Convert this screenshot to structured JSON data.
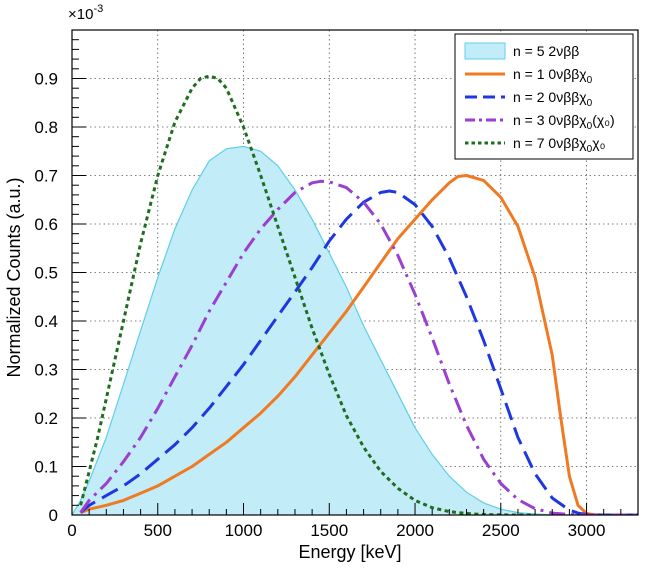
{
  "chart_data": {
    "type": "line",
    "title": "",
    "xlabel": "Energy [keV]",
    "ylabel": "Normalized Counts (a.u.)",
    "y_multiplier": "×10",
    "y_multiplier_exp": "-3",
    "xlim": [
      0,
      3300
    ],
    "ylim": [
      0,
      1.0
    ],
    "x_ticks": [
      0,
      500,
      1000,
      1500,
      2000,
      2500,
      3000
    ],
    "x_tick_labels": [
      "0",
      "500",
      "1000",
      "1500",
      "2000",
      "2500",
      "3000"
    ],
    "y_ticks": [
      0,
      0.1,
      0.2,
      0.3,
      0.4,
      0.5,
      0.6,
      0.7,
      0.8,
      0.9
    ],
    "y_tick_labels": [
      "0",
      "0.1",
      "0.2",
      "0.3",
      "0.4",
      "0.5",
      "0.6",
      "0.7",
      "0.8",
      "0.9"
    ],
    "grid": true,
    "legend_position": "top-right",
    "series": [
      {
        "name": "n = 5 2νββ",
        "legend_main": "n = 5 2νββ",
        "legend_sub": "",
        "legend_tail": "",
        "style": "filled-area",
        "color": "#5fcfe8",
        "fill": "#c2ecf7",
        "x": [
          0,
          50,
          100,
          200,
          300,
          400,
          500,
          600,
          700,
          800,
          900,
          1000,
          1100,
          1200,
          1300,
          1400,
          1500,
          1600,
          1700,
          1800,
          1900,
          2000,
          2100,
          2200,
          2300,
          2400,
          2500,
          2600,
          2700,
          2800,
          2900,
          3000
        ],
        "y": [
          0,
          0.03,
          0.07,
          0.16,
          0.27,
          0.38,
          0.49,
          0.59,
          0.67,
          0.73,
          0.755,
          0.76,
          0.75,
          0.72,
          0.67,
          0.61,
          0.54,
          0.47,
          0.39,
          0.32,
          0.25,
          0.18,
          0.125,
          0.08,
          0.047,
          0.025,
          0.012,
          0.005,
          0.002,
          0.0007,
          0.0001,
          0
        ]
      },
      {
        "name": "n = 1 0νββχ0",
        "legend_main": "n = 1 0νββχ",
        "legend_sub": "0",
        "legend_tail": "",
        "style": "solid",
        "color": "#f07a23",
        "x": [
          50,
          100,
          200,
          300,
          400,
          500,
          600,
          700,
          800,
          900,
          1000,
          1100,
          1200,
          1300,
          1400,
          1500,
          1600,
          1700,
          1800,
          1900,
          2000,
          2100,
          2200,
          2250,
          2300,
          2400,
          2500,
          2600,
          2700,
          2800,
          2850,
          2900,
          2950,
          3000,
          3050,
          3100,
          3300
        ],
        "y": [
          0.005,
          0.012,
          0.02,
          0.03,
          0.045,
          0.06,
          0.08,
          0.1,
          0.125,
          0.15,
          0.18,
          0.21,
          0.245,
          0.285,
          0.33,
          0.375,
          0.42,
          0.47,
          0.52,
          0.57,
          0.61,
          0.65,
          0.685,
          0.698,
          0.7,
          0.69,
          0.655,
          0.595,
          0.49,
          0.33,
          0.2,
          0.08,
          0.02,
          0.003,
          0.0005,
          0,
          0
        ]
      },
      {
        "name": "n = 2 0νββχ0",
        "legend_main": "n = 2 0νββχ",
        "legend_sub": "0",
        "legend_tail": "",
        "style": "dashed",
        "color": "#1f37e0",
        "x": [
          50,
          100,
          200,
          300,
          400,
          500,
          600,
          700,
          800,
          900,
          1000,
          1100,
          1200,
          1300,
          1400,
          1500,
          1600,
          1700,
          1800,
          1850,
          1900,
          2000,
          2100,
          2200,
          2300,
          2400,
          2500,
          2600,
          2700,
          2800,
          2900,
          2950,
          3000,
          3050,
          3300
        ],
        "y": [
          0.005,
          0.02,
          0.04,
          0.06,
          0.085,
          0.115,
          0.145,
          0.18,
          0.22,
          0.265,
          0.31,
          0.36,
          0.41,
          0.46,
          0.51,
          0.565,
          0.61,
          0.645,
          0.665,
          0.668,
          0.665,
          0.64,
          0.595,
          0.53,
          0.45,
          0.36,
          0.26,
          0.16,
          0.085,
          0.035,
          0.01,
          0.004,
          0.001,
          0,
          0
        ]
      },
      {
        "name": "n = 3 0νββχ0(χ0)",
        "legend_main": "n = 3 0νββχ",
        "legend_sub": "0",
        "legend_tail": "(χ₀)",
        "style": "dash-dot",
        "color": "#9b3fd0",
        "x": [
          50,
          100,
          200,
          300,
          400,
          500,
          600,
          700,
          800,
          900,
          1000,
          1100,
          1200,
          1300,
          1400,
          1450,
          1500,
          1600,
          1700,
          1800,
          1900,
          2000,
          2100,
          2200,
          2300,
          2400,
          2500,
          2600,
          2700,
          2800,
          2900,
          3000,
          3300
        ],
        "y": [
          0.005,
          0.03,
          0.065,
          0.11,
          0.16,
          0.22,
          0.285,
          0.35,
          0.42,
          0.48,
          0.54,
          0.59,
          0.63,
          0.665,
          0.685,
          0.688,
          0.687,
          0.675,
          0.645,
          0.6,
          0.535,
          0.455,
          0.365,
          0.27,
          0.185,
          0.115,
          0.065,
          0.032,
          0.013,
          0.004,
          0.001,
          0,
          0
        ]
      },
      {
        "name": "n = 7 0νββχ0χ0",
        "legend_main": "n = 7 0νββχ",
        "legend_sub": "0",
        "legend_tail": "χ₀",
        "style": "dotted",
        "color": "#1f6e1f",
        "x": [
          50,
          100,
          150,
          200,
          300,
          400,
          500,
          600,
          700,
          750,
          800,
          850,
          900,
          1000,
          1100,
          1200,
          1300,
          1400,
          1500,
          1600,
          1700,
          1800,
          1900,
          2000,
          2100,
          2200,
          2300,
          2400,
          2500,
          2600,
          2700
        ],
        "y": [
          0.02,
          0.09,
          0.16,
          0.24,
          0.4,
          0.56,
          0.7,
          0.81,
          0.88,
          0.9,
          0.905,
          0.9,
          0.88,
          0.8,
          0.7,
          0.595,
          0.49,
          0.385,
          0.29,
          0.205,
          0.14,
          0.09,
          0.055,
          0.03,
          0.015,
          0.007,
          0.003,
          0.001,
          0.0003,
          0.0001,
          0
        ]
      }
    ]
  }
}
